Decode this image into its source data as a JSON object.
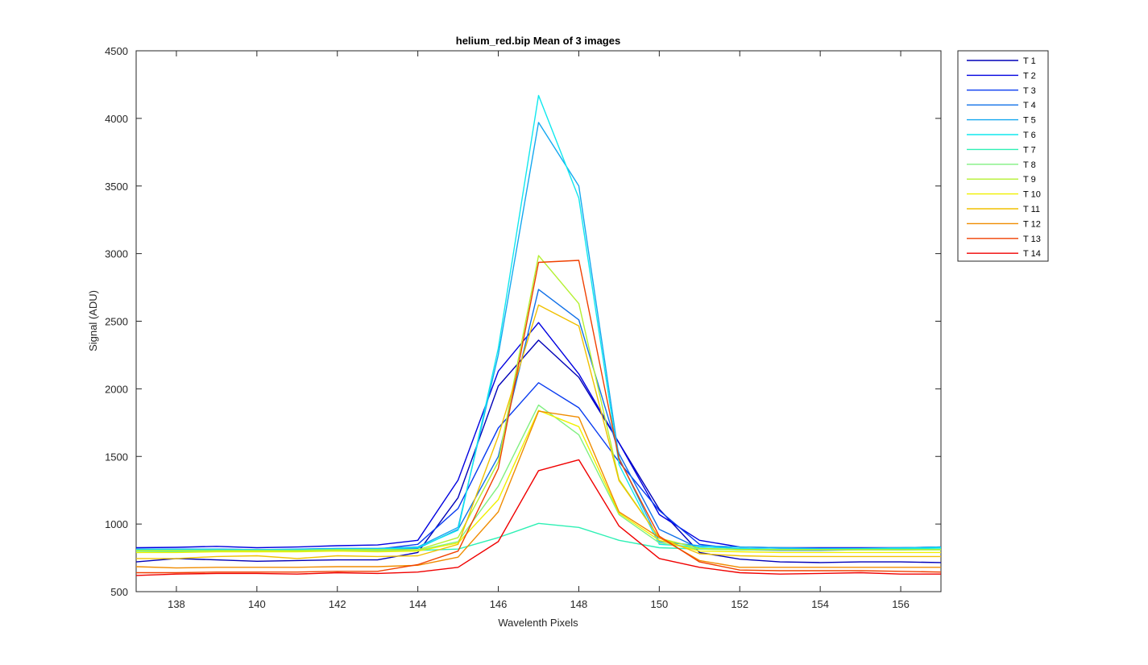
{
  "chart_data": {
    "type": "line",
    "title": "helium_red.bip  Mean of 3 images",
    "xlabel": "Wavelenth Pixels",
    "ylabel": "Signal (ADU)",
    "xlim": [
      137,
      157
    ],
    "ylim": [
      500,
      4500
    ],
    "xticks": [
      138,
      140,
      142,
      144,
      146,
      148,
      150,
      152,
      154,
      156
    ],
    "yticks": [
      500,
      1000,
      1500,
      2000,
      2500,
      3000,
      3500,
      4000,
      4500
    ],
    "grid": false,
    "legend_position": "outside-right-top",
    "x": [
      137,
      138,
      139,
      140,
      141,
      142,
      143,
      144,
      145,
      146,
      147,
      148,
      149,
      150,
      151,
      152,
      153,
      154,
      155,
      156,
      157
    ],
    "series": [
      {
        "name": "T 1",
        "color": "#0000b8",
        "values": [
          720,
          745,
          735,
          725,
          730,
          735,
          735,
          790,
          1195,
          2020,
          2360,
          2085,
          1600,
          1110,
          790,
          740,
          720,
          715,
          720,
          720,
          715
        ]
      },
      {
        "name": "T 2",
        "color": "#0000e0",
        "values": [
          825,
          828,
          835,
          825,
          830,
          840,
          845,
          880,
          1325,
          2130,
          2490,
          2110,
          1600,
          1070,
          880,
          830,
          825,
          825,
          825,
          825,
          830
        ]
      },
      {
        "name": "T 3",
        "color": "#0a3cf0",
        "values": [
          810,
          812,
          815,
          810,
          812,
          815,
          815,
          850,
          1115,
          1710,
          2045,
          1860,
          1460,
          1100,
          850,
          815,
          810,
          810,
          812,
          810,
          812
        ]
      },
      {
        "name": "T 4",
        "color": "#1070e8",
        "values": [
          805,
          808,
          810,
          805,
          810,
          812,
          812,
          820,
          960,
          1500,
          2735,
          2510,
          1520,
          960,
          820,
          810,
          805,
          805,
          810,
          810,
          812
        ]
      },
      {
        "name": "T 5",
        "color": "#14a8f0",
        "values": [
          815,
          815,
          815,
          810,
          815,
          820,
          820,
          830,
          975,
          2250,
          3970,
          3500,
          1490,
          870,
          840,
          830,
          825,
          820,
          820,
          825,
          830
        ]
      },
      {
        "name": "T 6",
        "color": "#10e8ee",
        "values": [
          810,
          810,
          810,
          810,
          810,
          815,
          815,
          825,
          955,
          2300,
          4170,
          3410,
          1440,
          850,
          830,
          820,
          815,
          815,
          818,
          820,
          825
        ]
      },
      {
        "name": "T 7",
        "color": "#2ef0b4",
        "values": [
          790,
          795,
          800,
          800,
          800,
          800,
          800,
          805,
          815,
          900,
          1005,
          975,
          880,
          825,
          815,
          810,
          810,
          810,
          815,
          815,
          815
        ]
      },
      {
        "name": "T 8",
        "color": "#80f080",
        "values": [
          800,
          800,
          805,
          800,
          805,
          805,
          805,
          805,
          870,
          1280,
          1880,
          1660,
          1070,
          860,
          815,
          810,
          810,
          810,
          810,
          810,
          810
        ]
      },
      {
        "name": "T 9",
        "color": "#b4f030",
        "values": [
          805,
          805,
          805,
          805,
          805,
          810,
          810,
          810,
          900,
          1460,
          2985,
          2630,
          1330,
          895,
          820,
          812,
          810,
          810,
          810,
          810,
          810
        ]
      },
      {
        "name": "T 10",
        "color": "#f0f000",
        "values": [
          790,
          790,
          795,
          795,
          795,
          800,
          795,
          800,
          860,
          1180,
          1840,
          1720,
          1080,
          880,
          800,
          795,
          790,
          790,
          790,
          790,
          790
        ]
      },
      {
        "name": "T 11",
        "color": "#f0c000",
        "values": [
          745,
          745,
          760,
          765,
          745,
          765,
          760,
          765,
          850,
          1650,
          2620,
          2465,
          1320,
          900,
          780,
          765,
          760,
          760,
          760,
          760,
          760
        ]
      },
      {
        "name": "T 12",
        "color": "#f08c00",
        "values": [
          685,
          675,
          680,
          680,
          680,
          685,
          685,
          695,
          755,
          1090,
          1835,
          1790,
          1090,
          900,
          730,
          680,
          680,
          680,
          680,
          680,
          680
        ]
      },
      {
        "name": "T 13",
        "color": "#f04000",
        "values": [
          640,
          640,
          645,
          645,
          645,
          650,
          650,
          700,
          800,
          1410,
          2935,
          2950,
          1480,
          910,
          720,
          660,
          655,
          655,
          655,
          650,
          645
        ]
      },
      {
        "name": "T 14",
        "color": "#f00000",
        "values": [
          620,
          630,
          635,
          635,
          630,
          640,
          635,
          645,
          680,
          870,
          1395,
          1475,
          985,
          745,
          680,
          640,
          630,
          635,
          640,
          630,
          630
        ]
      }
    ]
  }
}
